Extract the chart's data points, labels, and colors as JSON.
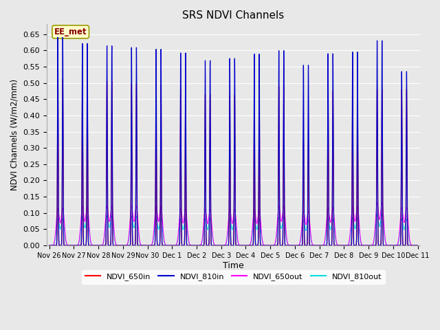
{
  "title": "SRS NDVI Channels",
  "xlabel": "Time",
  "ylabel": "NDVI Channels (W/m2/mm)",
  "ylim": [
    0.0,
    0.68
  ],
  "yticks": [
    0.0,
    0.05,
    0.1,
    0.15,
    0.2,
    0.25,
    0.3,
    0.35,
    0.4,
    0.45,
    0.5,
    0.55,
    0.6,
    0.65
  ],
  "bg_color": "#e8e8e8",
  "grid_color": "#ffffff",
  "anno_text": "EE_met",
  "anno_bg": "#ffffcc",
  "anno_border": "#999900",
  "anno_fg": "#8b0000",
  "colors": {
    "NDVI_650in": "#ff0000",
    "NDVI_810in": "#0000cc",
    "NDVI_650out": "#ff00ff",
    "NDVI_810out": "#00dddd"
  },
  "day_labels": [
    "Nov 26",
    "Nov 27",
    "Nov 28",
    "Nov 29",
    "Nov 30",
    "Dec 1",
    "Dec 2",
    "Dec 3",
    "Dec 4",
    "Dec 5",
    "Dec 6",
    "Dec 7",
    "Dec 8",
    "Dec 9",
    "Dec 10",
    "Dec 11"
  ],
  "peaks_810in": [
    0.64,
    0.64,
    0.621,
    0.621,
    0.614,
    0.614,
    0.609,
    0.609,
    0.604,
    0.604,
    0.593,
    0.593,
    0.57,
    0.57,
    0.577,
    0.577,
    0.59,
    0.59,
    0.6,
    0.6,
    0.555,
    0.555,
    0.59,
    0.59,
    0.595,
    0.595,
    0.63,
    0.63,
    0.535,
    0.535
  ],
  "peaks_650in": [
    0.511,
    0.511,
    0.508,
    0.508,
    0.505,
    0.505,
    0.498,
    0.498,
    0.495,
    0.495,
    0.48,
    0.48,
    0.466,
    0.466,
    0.464,
    0.464,
    0.48,
    0.48,
    0.49,
    0.49,
    0.322,
    0.322,
    0.476,
    0.476,
    0.473,
    0.473,
    0.48,
    0.48,
    0.48,
    0.48
  ],
  "peaks_650out": [
    0.113,
    0.113,
    0.12,
    0.12,
    0.12,
    0.12,
    0.12,
    0.12,
    0.12,
    0.12,
    0.112,
    0.112,
    0.11,
    0.11,
    0.11,
    0.11,
    0.11,
    0.11,
    0.12,
    0.12,
    0.105,
    0.105,
    0.115,
    0.115,
    0.12,
    0.12,
    0.13,
    0.13,
    0.115,
    0.115
  ],
  "peaks_810out": [
    0.082,
    0.082,
    0.088,
    0.088,
    0.09,
    0.09,
    0.088,
    0.088,
    0.082,
    0.082,
    0.08,
    0.08,
    0.08,
    0.08,
    0.08,
    0.08,
    0.08,
    0.08,
    0.085,
    0.085,
    0.075,
    0.075,
    0.08,
    0.08,
    0.085,
    0.085,
    0.095,
    0.095,
    0.08,
    0.08
  ]
}
